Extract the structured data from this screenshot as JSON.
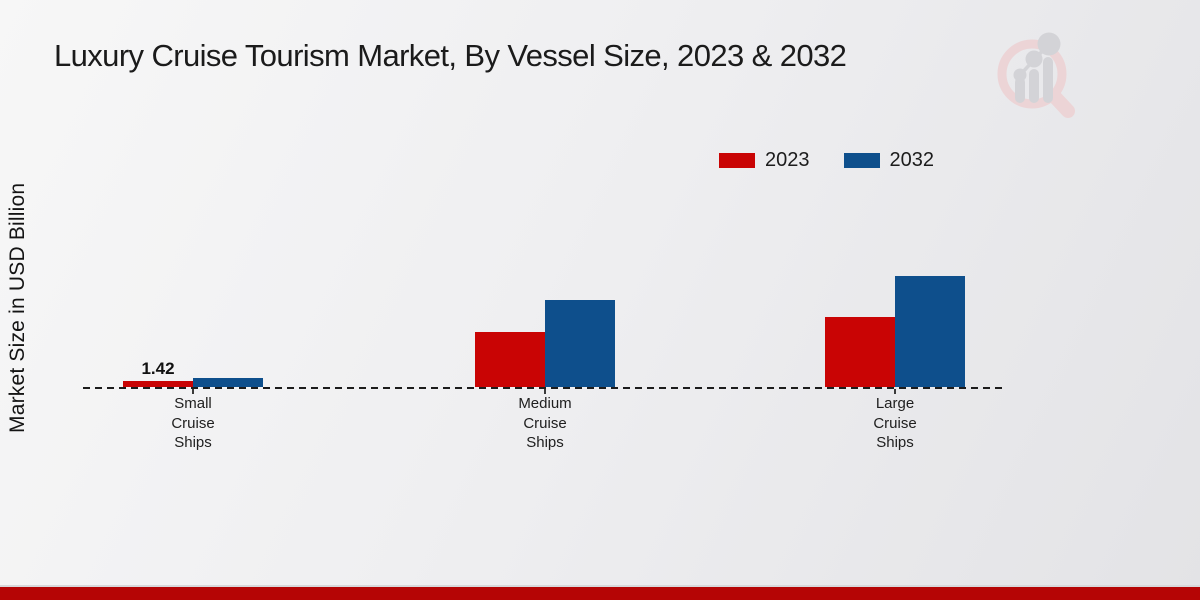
{
  "page": {
    "title": "Luxury Cruise Tourism Market, By Vessel Size, 2023 & 2032",
    "ylabel": "Market Size in USD Billion"
  },
  "colors": {
    "series_2023": "#c90404",
    "series_2032": "#0e4f8c",
    "footer_bar": "#b50505",
    "baseline": "#1c1c1c",
    "title_text": "#1b1b1b"
  },
  "branding": {
    "logo_icon": "magnifier-bar-chart-logo"
  },
  "chart_data": {
    "type": "bar",
    "title": "Luxury Cruise Tourism Market, By Vessel Size, 2023 & 2032",
    "xlabel": "",
    "ylabel": "Market Size in USD Billion",
    "categories": [
      "Small Cruise Ships",
      "Medium Cruise Ships",
      "Large Cruise Ships"
    ],
    "category_display_lines": [
      "Small\nCruise\nShips",
      "Medium\nCruise\nShips",
      "Large\nCruise\nShips"
    ],
    "series": [
      {
        "name": "2023",
        "color": "#c90404",
        "values": [
          1.42,
          13.0,
          16.6
        ],
        "value_labels": [
          "1.42",
          "",
          ""
        ]
      },
      {
        "name": "2032",
        "color": "#0e4f8c",
        "values": [
          2.1,
          20.6,
          26.3
        ],
        "value_labels": [
          "",
          "",
          ""
        ]
      }
    ],
    "ylim": [
      0,
      28
    ],
    "grid": false,
    "baseline_style": "dashed",
    "legend_position": "top-right",
    "legend_entries": [
      "2023",
      "2032"
    ]
  }
}
